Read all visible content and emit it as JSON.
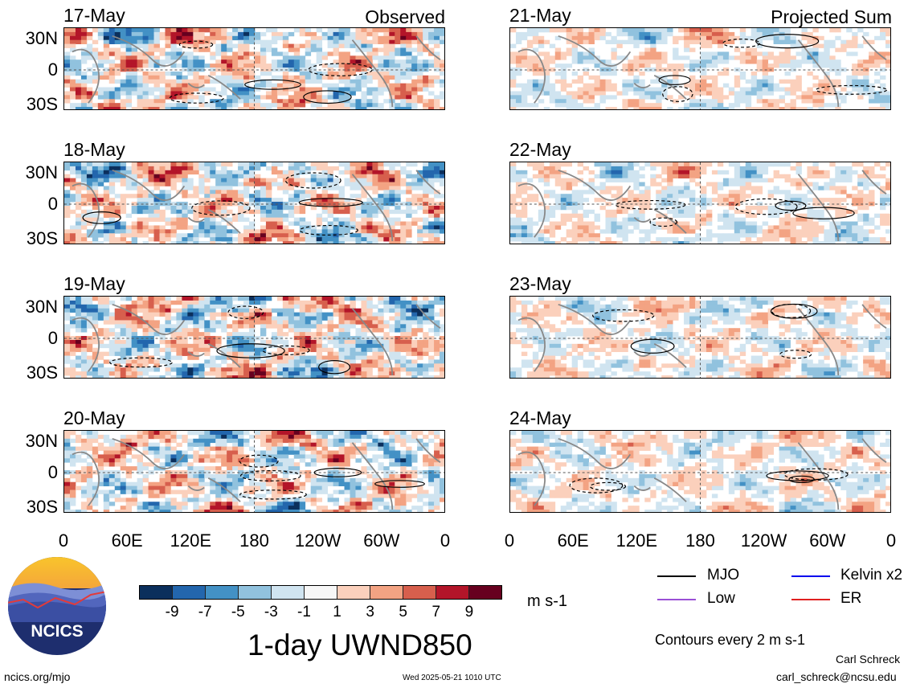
{
  "panels_left": [
    {
      "date": "17-May",
      "corner": "Observed"
    },
    {
      "date": "18-May",
      "corner": ""
    },
    {
      "date": "19-May",
      "corner": ""
    },
    {
      "date": "20-May",
      "corner": ""
    }
  ],
  "panels_right": [
    {
      "date": "21-May",
      "corner": "Projected Sum"
    },
    {
      "date": "22-May",
      "corner": ""
    },
    {
      "date": "23-May",
      "corner": ""
    },
    {
      "date": "24-May",
      "corner": ""
    }
  ],
  "chart_data": {
    "type": "heatmap",
    "title": "1-day UWND850",
    "y_ticks": [
      "30N",
      "0",
      "30S"
    ],
    "x_ticks": [
      "0",
      "60E",
      "120E",
      "180",
      "120W",
      "60W",
      "0"
    ],
    "colorbar": {
      "unit": "m s-1",
      "tick_labels": [
        "-9",
        "-7",
        "-5",
        "-3",
        "-1",
        "1",
        "3",
        "5",
        "7",
        "9"
      ],
      "colors": [
        "#0b2f5c",
        "#2366ad",
        "#4391c5",
        "#91c2de",
        "#d0e4f0",
        "#f7f7f7",
        "#fbd0bc",
        "#f3a383",
        "#d75f4d",
        "#b31529",
        "#67001f"
      ]
    }
  },
  "legend": {
    "items": [
      {
        "label": "MJO",
        "color": "#000000"
      },
      {
        "label": "Kelvin x2",
        "color": "#0000ee"
      },
      {
        "label": "Low",
        "color": "#9a4fd6"
      },
      {
        "label": "ER",
        "color": "#e02020"
      }
    ],
    "note": "Contours every 2 m s-1"
  },
  "footer": {
    "logo_text": "NCICS",
    "url": "ncics.org/mjo",
    "timestamp": "Wed 2025-05-21 1010 UTC",
    "author": "Carl Schreck",
    "email": "carl_schreck@ncsu.edu"
  }
}
